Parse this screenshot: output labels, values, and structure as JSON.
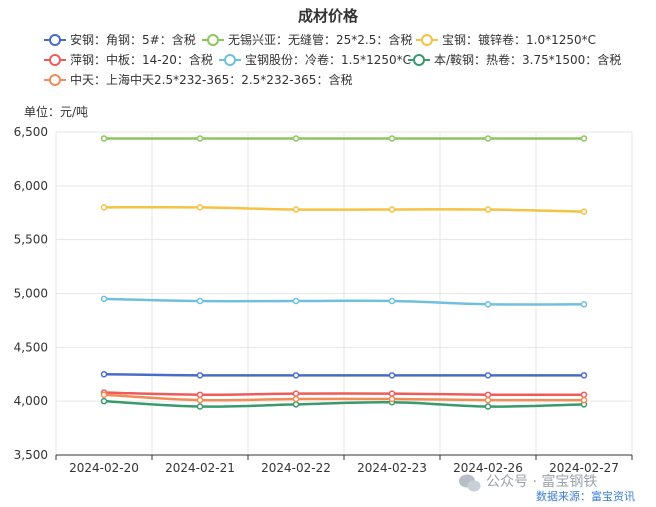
{
  "chart_data": {
    "type": "line",
    "title": "成材价格",
    "ylabel": "单位：元/吨",
    "xlabel": "",
    "categories": [
      "2024-02-20",
      "2024-02-21",
      "2024-02-22",
      "2024-02-23",
      "2024-02-26",
      "2024-02-27"
    ],
    "ylim": [
      3500,
      6500
    ],
    "yticks": [
      3500,
      4000,
      4500,
      5000,
      5500,
      6000,
      6500
    ],
    "ytick_labels": [
      "3,500",
      "4,000",
      "4,500",
      "5,000",
      "5,500",
      "6,000",
      "6,500"
    ],
    "grid": true,
    "legend_position": "top",
    "series": [
      {
        "name": "安钢：角钢：5#：含税",
        "color": "#4a6cc9",
        "values": [
          4250,
          4240,
          4240,
          4240,
          4240,
          4240
        ]
      },
      {
        "name": "无锡兴亚：无缝管：25*2.5：含税",
        "color": "#8cc560",
        "values": [
          6440,
          6440,
          6440,
          6440,
          6440,
          6440
        ]
      },
      {
        "name": "宝钢：镀锌卷：1.0*1250*C",
        "color": "#f5c243",
        "values": [
          5800,
          5800,
          5780,
          5780,
          5780,
          5760
        ]
      },
      {
        "name": "萍钢：中板：14-20：含税",
        "color": "#ee5b5b",
        "values": [
          4080,
          4060,
          4070,
          4070,
          4060,
          4060
        ]
      },
      {
        "name": "宝钢股份：冷卷：1.5*1250*C",
        "color": "#71bfde",
        "values": [
          4950,
          4930,
          4930,
          4930,
          4900,
          4900
        ]
      },
      {
        "name": "本/鞍钢：热卷：3.75*1500：含税",
        "color": "#3a9a6e",
        "values": [
          4000,
          3950,
          3970,
          3990,
          3950,
          3970
        ]
      },
      {
        "name": "中天：上海中天2.5*232-365：2.5*232-365：含税",
        "color": "#f38b55",
        "values": [
          4060,
          4010,
          4020,
          4020,
          4010,
          4010
        ]
      }
    ]
  },
  "watermark": {
    "text": "公众号 · 富宝钢铁",
    "source": "数据来源：富宝资讯"
  }
}
